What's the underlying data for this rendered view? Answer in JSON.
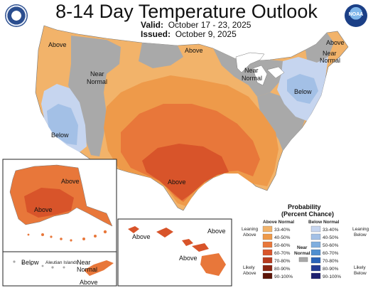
{
  "title": "8-14 Day Temperature Outlook",
  "valid_label": "Valid:",
  "valid_dates": "October 17 - 23, 2025",
  "issued_label": "Issued:",
  "issued_date": "October 9, 2025",
  "map_labels": {
    "above_nw": "Above",
    "near_normal_west_1": "Near",
    "near_normal_west_2": "Normal",
    "below_west": "Below",
    "above_north": "Above",
    "above_south": "Above",
    "near_normal_glakes_1": "Near",
    "near_normal_glakes_2": "Normal",
    "above_ne": "Above",
    "near_normal_ne_1": "Near",
    "near_normal_ne_2": "Normal",
    "below_ne": "Below",
    "alaska_above_1": "Above",
    "alaska_above_2": "Above",
    "aleutian_below": "Below",
    "aleutian_islands": "Aleutian Islands",
    "aleutian_near_1": "Near",
    "aleutian_near_2": "Normal",
    "aleutian_above": "Above",
    "hawaii_above_1": "Above",
    "hawaii_above_2": "Above",
    "hawaii_above_3": "Above"
  },
  "legend": {
    "title_1": "Probability",
    "title_2": "(Percent Chance)",
    "above_header": "Above Normal",
    "below_header": "Below Normal",
    "near_normal_1": "Near",
    "near_normal_2": "Normal",
    "leaning_above_1": "Leaning",
    "leaning_above_2": "Above",
    "likely_above_1": "Likely",
    "likely_above_2": "Above",
    "leaning_below_1": "Leaning",
    "leaning_below_2": "Below",
    "likely_below_1": "Likely",
    "likely_below_2": "Below",
    "bins": [
      "33-40%",
      "40-50%",
      "50-60%",
      "60-70%",
      "70-80%",
      "80-90%",
      "90-100%"
    ],
    "above_colors": [
      "#f2b36a",
      "#ee9a4a",
      "#e8773a",
      "#d8542a",
      "#b63a1e",
      "#8a2512",
      "#5c1508"
    ],
    "below_colors": [
      "#c6d5ef",
      "#a3c0e6",
      "#7faede",
      "#4f8fd0",
      "#2a64b8",
      "#243c94",
      "#1d1f6e"
    ],
    "near_color": "#a9a9a9"
  }
}
